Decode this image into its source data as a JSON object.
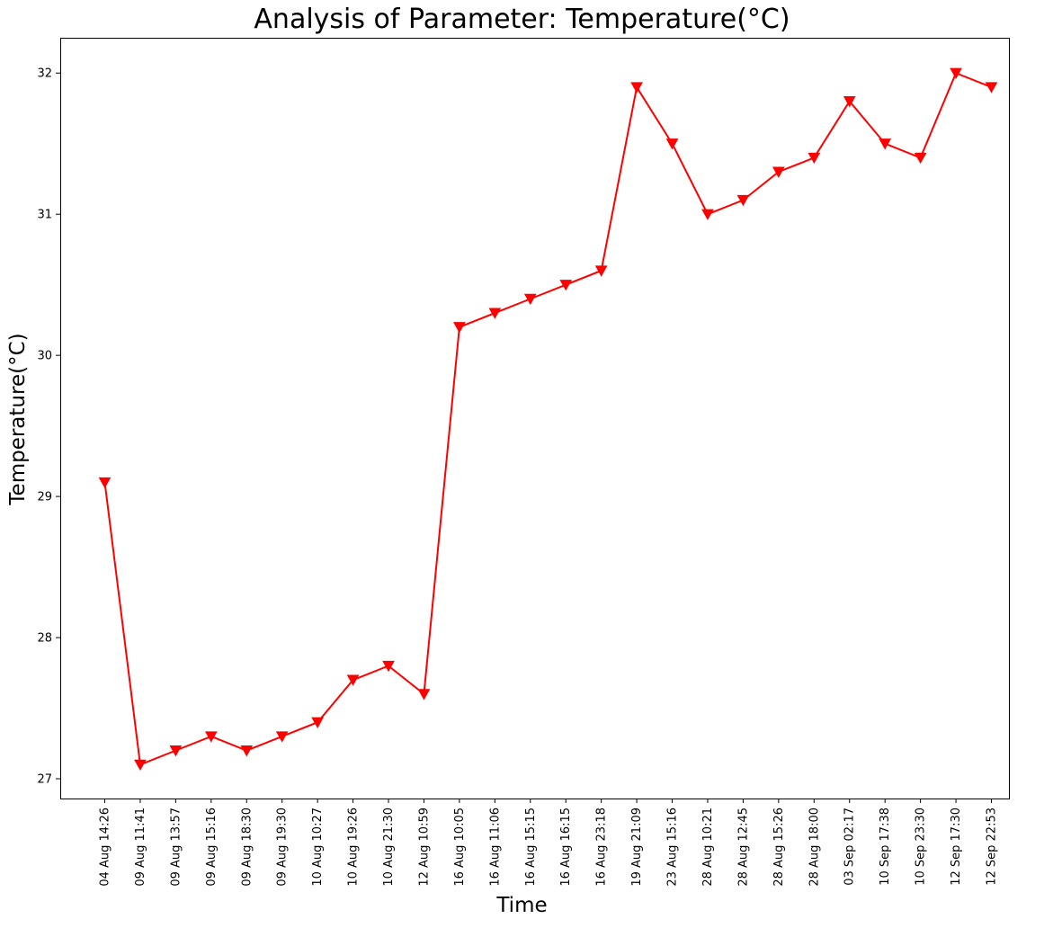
{
  "chart_data": {
    "type": "line",
    "title": "Analysis of Parameter: Temperature(°C)",
    "xlabel": "Time",
    "ylabel": "Temperature(°C)",
    "ylim": [
      26.86,
      32.25
    ],
    "yticks": [
      27,
      28,
      29,
      30,
      31,
      32
    ],
    "grid": false,
    "marker": "triangle-down",
    "categories": [
      "04 Aug 14:26",
      "09 Aug 11:41",
      "09 Aug 13:57",
      "09 Aug 15:16",
      "09 Aug 18:30",
      "09 Aug 19:30",
      "10 Aug 10:27",
      "10 Aug 19:26",
      "10 Aug 21:30",
      "12 Aug 10:59",
      "16 Aug 10:05",
      "16 Aug 11:06",
      "16 Aug 15:15",
      "16 Aug 16:15",
      "16 Aug 23:18",
      "19 Aug 21:09",
      "23 Aug 15:16",
      "28 Aug 10:21",
      "28 Aug 12:45",
      "28 Aug 15:26",
      "28 Aug 18:00",
      "03 Sep 02:17",
      "10 Sep 17:38",
      "10 Sep 23:30",
      "12 Sep 17:30",
      "12 Sep 22:53"
    ],
    "series": [
      {
        "color": "#ff0000",
        "values": [
          29.1,
          27.1,
          27.2,
          27.3,
          27.2,
          27.3,
          27.4,
          27.7,
          27.8,
          27.6,
          30.2,
          30.3,
          30.4,
          30.5,
          30.6,
          31.9,
          31.5,
          31.0,
          31.1,
          31.3,
          31.4,
          31.8,
          31.5,
          31.4,
          32.0,
          31.9
        ]
      }
    ]
  }
}
